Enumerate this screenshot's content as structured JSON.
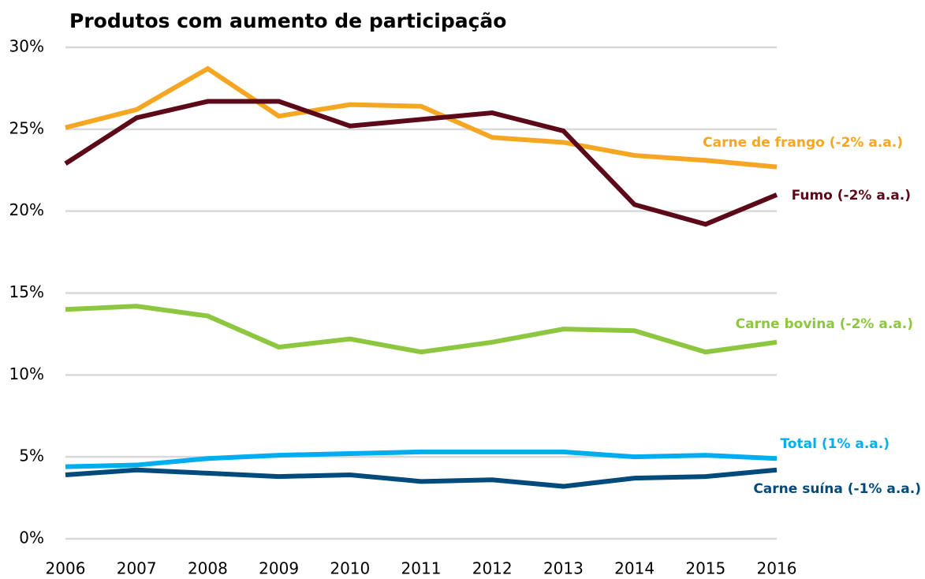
{
  "chart_data": {
    "type": "line",
    "title": "Produtos com aumento de participação",
    "x": [
      2006,
      2007,
      2008,
      2009,
      2010,
      2011,
      2012,
      2013,
      2014,
      2015,
      2016
    ],
    "xlim": [
      2006,
      2016
    ],
    "xticks": [
      2006,
      2007,
      2008,
      2009,
      2010,
      2011,
      2012,
      2013,
      2014,
      2015,
      2016
    ],
    "ylim": [
      0,
      30
    ],
    "yticks": [
      {
        "value": 0,
        "label": "0%"
      },
      {
        "value": 5,
        "label": "5%"
      },
      {
        "value": 10,
        "label": "10%"
      },
      {
        "value": 15,
        "label": "15%"
      },
      {
        "value": 20,
        "label": "20%"
      },
      {
        "value": 25,
        "label": "25%"
      },
      {
        "value": 30,
        "label": "30%"
      }
    ],
    "grid": true,
    "series": [
      {
        "name": "Carne de frango (-2% a.a.)",
        "color": "#f5a623",
        "values": [
          25.1,
          26.2,
          28.7,
          25.8,
          26.5,
          26.4,
          24.5,
          24.2,
          23.4,
          23.1,
          22.7
        ]
      },
      {
        "name": "Fumo (-2% a.a.)",
        "color": "#5c0a1a",
        "values": [
          22.9,
          25.7,
          26.7,
          26.7,
          25.2,
          25.6,
          26.0,
          24.9,
          20.4,
          19.2,
          21.0
        ]
      },
      {
        "name": "Carne bovina (-2% a.a.)",
        "color": "#8dc63f",
        "values": [
          14.0,
          14.2,
          13.6,
          11.7,
          12.2,
          11.4,
          12.0,
          12.8,
          12.7,
          11.4,
          12.0
        ]
      },
      {
        "name": "Total (1% a.a.)",
        "color": "#00aeef",
        "values": [
          4.4,
          4.5,
          4.9,
          5.1,
          5.2,
          5.3,
          5.3,
          5.3,
          5.0,
          5.1,
          4.9
        ]
      },
      {
        "name": "Carne suína (-1% a.a.)",
        "color": "#004a7c",
        "values": [
          3.9,
          4.2,
          4.0,
          3.8,
          3.9,
          3.5,
          3.6,
          3.2,
          3.7,
          3.8,
          4.2
        ]
      }
    ]
  }
}
